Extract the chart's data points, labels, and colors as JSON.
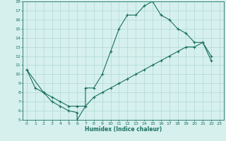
{
  "xlabel": "Humidex (Indice chaleur)",
  "bg_color": "#d6f0ee",
  "line_color": "#1a7060",
  "grid_color": "#b0d8d2",
  "xlim": [
    -0.5,
    23.5
  ],
  "ylim": [
    5,
    18
  ],
  "xticks": [
    0,
    1,
    2,
    3,
    4,
    5,
    6,
    7,
    8,
    9,
    10,
    11,
    12,
    13,
    14,
    15,
    16,
    17,
    18,
    19,
    20,
    21,
    22,
    23
  ],
  "yticks": [
    5,
    6,
    7,
    8,
    9,
    10,
    11,
    12,
    13,
    14,
    15,
    16,
    17,
    18
  ],
  "line1": {
    "x": [
      0,
      1,
      2,
      3,
      4,
      5,
      6,
      6,
      7,
      7,
      8,
      9,
      10,
      11,
      12,
      13,
      14,
      15,
      16,
      17,
      18,
      19,
      20,
      21,
      22
    ],
    "y": [
      10.5,
      8.5,
      8,
      7,
      6.5,
      6.0,
      5.8,
      5.0,
      6.5,
      8.5,
      8.5,
      10,
      12.5,
      15.0,
      16.5,
      16.5,
      17.5,
      18.0,
      16.5,
      16.0,
      15.0,
      14.5,
      13.5,
      13.5,
      12.0
    ]
  },
  "line2": {
    "x": [
      0,
      2,
      3,
      4,
      5,
      6,
      7,
      8,
      9,
      10,
      11,
      12,
      13,
      14,
      15,
      16,
      17,
      18,
      19,
      20,
      21,
      22
    ],
    "y": [
      10.5,
      8.0,
      7.5,
      7.0,
      6.5,
      6.5,
      6.5,
      7.5,
      8.0,
      8.5,
      9.0,
      9.5,
      10.0,
      10.5,
      11.0,
      11.5,
      12.0,
      12.5,
      13.0,
      13.0,
      13.5,
      11.5
    ]
  },
  "line3": {
    "x": [
      2,
      3,
      4,
      5,
      6,
      7,
      8,
      9,
      10,
      11,
      12,
      13,
      14,
      15,
      16,
      17,
      18,
      19,
      20,
      21,
      22
    ],
    "y": [
      8.0,
      7.5,
      7.0,
      6.5,
      6.5,
      6.5,
      7.5,
      8.0,
      8.5,
      9.0,
      9.5,
      10.0,
      10.5,
      11.0,
      11.5,
      12.0,
      12.5,
      13.0,
      13.0,
      13.5,
      11.5
    ]
  }
}
